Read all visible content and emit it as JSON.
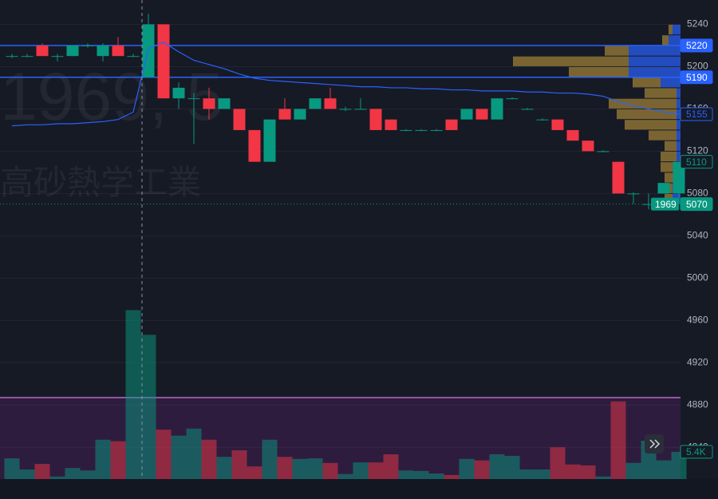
{
  "chart_data": {
    "type": "candlestick",
    "watermark": "1969, 5",
    "company": "高砂熱学工業",
    "symbol": "1969",
    "up_color": "#089981",
    "down_color": "#f23645",
    "ma_color": "#2962ff",
    "ylim": [
      4810,
      5263
    ],
    "yticks": [
      4840,
      4880,
      4920,
      4960,
      5000,
      5040,
      5080,
      5120,
      5160,
      5200,
      5240
    ],
    "grid": true,
    "open": [
      5210,
      5210,
      5220,
      5210,
      5210,
      5220,
      5210,
      5220,
      5210,
      5190,
      5240,
      5170,
      5170,
      5170,
      5160,
      5160,
      5140,
      5110,
      5160,
      5150,
      5160,
      5170,
      5160,
      5160,
      5160,
      5150,
      5140,
      5140,
      5140,
      5150,
      5150,
      5160,
      5150,
      5170,
      5160,
      5150,
      5150,
      5140,
      5130,
      5120,
      5110,
      5080,
      5070,
      5080,
      5080
    ],
    "high": [
      5212,
      5212,
      5222,
      5212,
      5220,
      5222,
      5222,
      5228,
      5212,
      5250,
      5240,
      5185,
      5175,
      5180,
      5170,
      5160,
      5140,
      5150,
      5170,
      5160,
      5170,
      5180,
      5162,
      5170,
      5160,
      5150,
      5141,
      5141,
      5141,
      5150,
      5160,
      5160,
      5170,
      5171,
      5161,
      5151,
      5150,
      5140,
      5130,
      5121,
      5110,
      5081,
      5080,
      5090,
      5110
    ],
    "low": [
      5208,
      5209,
      5210,
      5205,
      5210,
      5218,
      5205,
      5210,
      5209,
      5190,
      5170,
      5160,
      5127,
      5150,
      5160,
      5140,
      5110,
      5110,
      5150,
      5150,
      5160,
      5160,
      5158,
      5160,
      5140,
      5140,
      5139,
      5139,
      5139,
      5140,
      5150,
      5150,
      5150,
      5169,
      5159,
      5149,
      5140,
      5130,
      5120,
      5119,
      5080,
      5070,
      5065,
      5080,
      5070
    ],
    "close": [
      5210,
      5210,
      5210,
      5210,
      5220,
      5220,
      5220,
      5210,
      5210,
      5240,
      5170,
      5180,
      5170,
      5160,
      5170,
      5140,
      5110,
      5150,
      5150,
      5160,
      5170,
      5160,
      5160,
      5160,
      5140,
      5140,
      5140,
      5140,
      5140,
      5140,
      5160,
      5150,
      5170,
      5170,
      5160,
      5150,
      5140,
      5130,
      5120,
      5120,
      5080,
      5080,
      5070,
      5090,
      5110
    ],
    "ma": [
      5144,
      5145,
      5145,
      5146,
      5146,
      5147,
      5148,
      5150,
      5157,
      5217,
      5223,
      5214,
      5206,
      5202,
      5198,
      5193,
      5189,
      5187,
      5186,
      5185,
      5184,
      5183,
      5182,
      5181,
      5181,
      5180,
      5180,
      5179,
      5179,
      5178,
      5178,
      5177,
      5177,
      5177,
      5176,
      5176,
      5175,
      5175,
      5174,
      5172,
      5167,
      5163,
      5160,
      5157,
      5155
    ],
    "volume_ylim": [
      0,
      95
    ],
    "volumes": [
      4.1,
      1.9,
      3.0,
      0.5,
      2.2,
      1.7,
      7.8,
      7.5,
      33.5,
      28.6,
      9.8,
      8.6,
      10.0,
      7.8,
      4.4,
      5.7,
      2.5,
      7.8,
      4.4,
      4.0,
      4.1,
      3.2,
      1.0,
      3.3,
      3.3,
      4.9,
      1.7,
      1.6,
      1.1,
      0.8,
      4.0,
      3.7,
      4.9,
      4.6,
      1.9,
      1.9,
      6.3,
      2.9,
      2.7,
      0.5,
      15.4,
      3.2,
      7.6,
      3.7,
      5.4
    ],
    "volume_label": {
      "value": 5.4,
      "label": "5.4K"
    },
    "highlight_level": 4887,
    "levels": [
      {
        "price": 5220,
        "color": "#2962ff"
      },
      {
        "price": 5190,
        "color": "#2962ff"
      }
    ],
    "price_labels": [
      {
        "value": 5220,
        "color": "#2962ff",
        "filled": true
      },
      {
        "value": 5190,
        "color": "#2962ff",
        "filled": true
      },
      {
        "value": 5155,
        "color": "#2962ff",
        "filled": false
      },
      {
        "value": 5110,
        "color": "#089981",
        "filled": false
      },
      {
        "value": 5070,
        "color": "#089981",
        "filled": true
      }
    ],
    "profile": [
      {
        "price": 5235,
        "down": 5,
        "up": 10
      },
      {
        "price": 5225,
        "down": 8,
        "up": 15
      },
      {
        "price": 5215,
        "down": 30,
        "up": 65
      },
      {
        "price": 5205,
        "down": 145,
        "up": 65
      },
      {
        "price": 5195,
        "down": 75,
        "up": 65
      },
      {
        "price": 5185,
        "down": 35,
        "up": 25
      },
      {
        "price": 5175,
        "down": 40,
        "up": 5
      },
      {
        "price": 5165,
        "down": 85,
        "up": 5
      },
      {
        "price": 5155,
        "down": 75,
        "up": 5
      },
      {
        "price": 5145,
        "down": 65,
        "up": 5
      },
      {
        "price": 5135,
        "down": 35,
        "up": 5
      },
      {
        "price": 5125,
        "down": 15,
        "up": 5
      },
      {
        "price": 5115,
        "down": 20,
        "up": 5
      },
      {
        "price": 5105,
        "down": 20,
        "up": 5
      },
      {
        "price": 5095,
        "down": 15,
        "up": 5
      },
      {
        "price": 5085,
        "down": 15,
        "up": 10
      },
      {
        "price": 5075,
        "down": 10,
        "up": 10
      }
    ]
  }
}
